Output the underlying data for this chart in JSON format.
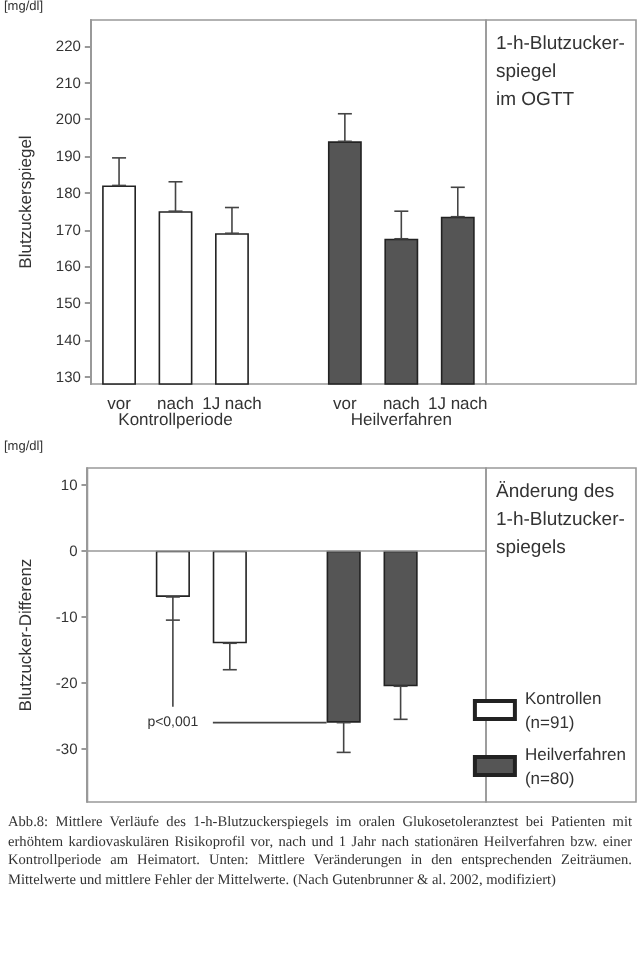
{
  "chart_data": [
    {
      "type": "bar",
      "ylabel": "Blutzuckerspiegel",
      "categories": [
        "vor",
        "nach",
        "1J nach",
        null,
        "vor",
        "nach",
        "1J nach"
      ],
      "values": [
        182,
        175,
        169,
        null,
        194,
        167.5,
        173.5
      ],
      "colors": [
        "#ffffff",
        "#ffffff",
        "#ffffff",
        "#ffffff",
        "#555555",
        "#555555",
        "#555555"
      ],
      "errors": [
        [
          182,
          189.5
        ],
        [
          175,
          183
        ],
        [
          169,
          176
        ],
        null,
        [
          194,
          201.5
        ],
        [
          167.5,
          175
        ],
        [
          173.5,
          181.5
        ]
      ],
      "ylim": [
        128,
        227
      ],
      "yticks": [
        130,
        140,
        150,
        160,
        170,
        180,
        190,
        200,
        210,
        220
      ],
      "annotations": [
        "[mg/dl]",
        "1-h-Blutzucker-\nspiegel\nim OGTT",
        "Kontrollperiode",
        "Heilverfahren"
      ],
      "grid": false,
      "legend": false
    },
    {
      "type": "bar",
      "ylabel": "Blutzucker-Differenz",
      "categories": [
        null,
        null,
        null,
        null,
        null,
        null,
        null
      ],
      "series": [
        {
          "name": "Kontrollen\n(n=91)",
          "color": "#ffffff",
          "values": [
            null,
            -7,
            -14,
            null,
            null,
            null,
            null
          ],
          "errors": [
            null,
            [
              -10.5,
              -7
            ],
            [
              -18,
              -14
            ],
            null,
            null,
            null,
            null
          ]
        },
        {
          "name": "Heilverfahren\n(n=80)",
          "color": "#555555",
          "values": [
            null,
            null,
            null,
            null,
            -26,
            -20.5,
            null
          ],
          "errors": [
            null,
            null,
            null,
            null,
            [
              -30.5,
              -26
            ],
            [
              -25.5,
              -20.5
            ],
            null
          ]
        }
      ],
      "ylim": [
        -38,
        12.5
      ],
      "yticks": [
        -30,
        -20,
        -10,
        0,
        10
      ],
      "ref_lines": [
        {
          "axis": "y",
          "value": 0,
          "label": null
        }
      ],
      "annotations": [
        "[mg/dl]",
        "Änderung des\n1-h-Blutzucker-\nspiegels",
        "p<0,001",
        "Abb.8: Mittlere Verläufe des 1-h-Blutzuckerspiegels im oralen Glukosetoleranztest bei Patienten mit erhöhtem kardiovaskulären Risikoprofil vor, nach und 1 Jahr nach stationären Heilverfahren bzw. einer Kontrollperiode am Heimatort. Unten: Mittlere Veränderungen in den entsprechenden Zeiträumen. Mittelwerte und mittlere Fehler der Mittelwerte. (Nach Gutenbrunner & al. 2002, modifiziert)"
      ],
      "grid": false,
      "legend": "bottom right"
    }
  ]
}
